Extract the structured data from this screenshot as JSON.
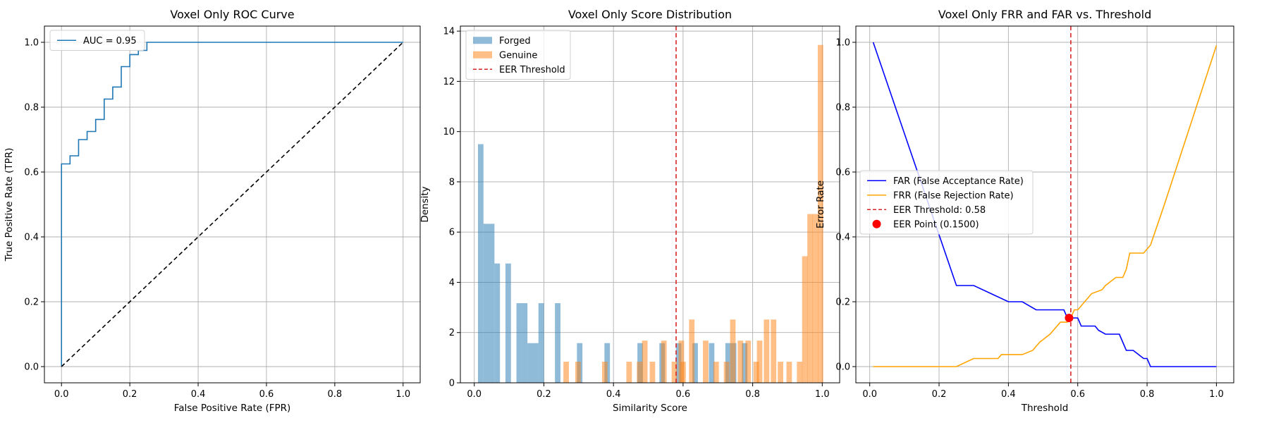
{
  "chart_data": [
    {
      "type": "line",
      "title": "Voxel Only ROC Curve",
      "xlabel": "False Positive Rate (FPR)",
      "ylabel": "True Positive Rate (TPR)",
      "xlim": [
        -0.05,
        1.05
      ],
      "ylim": [
        -0.05,
        1.05
      ],
      "xticks": [
        "0.0",
        "0.2",
        "0.4",
        "0.6",
        "0.8",
        "1.0"
      ],
      "yticks": [
        "0.0",
        "0.2",
        "0.4",
        "0.6",
        "0.8",
        "1.0"
      ],
      "grid": true,
      "legend": "top-left",
      "series": [
        {
          "name": "AUC = 0.95",
          "color": "#1f77b4",
          "style": "step",
          "x": [
            0,
            0,
            0.025,
            0.025,
            0.05,
            0.05,
            0.075,
            0.075,
            0.1,
            0.1,
            0.125,
            0.125,
            0.15,
            0.15,
            0.175,
            0.175,
            0.2,
            0.2,
            0.225,
            0.225,
            0.25,
            0.25,
            1.0
          ],
          "y": [
            0,
            0.625,
            0.625,
            0.65,
            0.65,
            0.7,
            0.7,
            0.725,
            0.725,
            0.762,
            0.762,
            0.825,
            0.825,
            0.862,
            0.862,
            0.925,
            0.925,
            0.962,
            0.962,
            0.975,
            0.975,
            1.0,
            1.0
          ]
        },
        {
          "name": "",
          "color": "#000000",
          "style": "dashed",
          "x": [
            0,
            1
          ],
          "y": [
            0,
            1
          ]
        }
      ]
    },
    {
      "type": "bar",
      "title": "Voxel Only Score Distribution",
      "xlabel": "Similarity Score",
      "ylabel": "Density",
      "xlim": [
        -0.04,
        1.05
      ],
      "ylim": [
        0,
        14.2
      ],
      "xticks": [
        "0.0",
        "0.2",
        "0.4",
        "0.6",
        "0.8",
        "1.0"
      ],
      "yticks": [
        "0",
        "2",
        "4",
        "6",
        "8",
        "10",
        "12",
        "14"
      ],
      "grid": true,
      "legend": "top-left",
      "threshold": {
        "name": "EER Threshold",
        "x": 0.58,
        "color": "#d62728"
      },
      "series": [
        {
          "name": "Forged",
          "color": "#1f77b4",
          "opacity": 0.5,
          "bin_width": 0.0158,
          "bins": [
            [
              0.0185,
              9.5
            ],
            [
              0.0343,
              6.33
            ],
            [
              0.0501,
              6.33
            ],
            [
              0.0659,
              4.75
            ],
            [
              0.0975,
              4.75
            ],
            [
              0.1291,
              3.17
            ],
            [
              0.1449,
              3.17
            ],
            [
              0.1607,
              1.58
            ],
            [
              0.1765,
              1.58
            ],
            [
              0.1923,
              3.17
            ],
            [
              0.2397,
              3.17
            ],
            [
              0.3029,
              1.58
            ],
            [
              0.3819,
              1.58
            ],
            [
              0.4767,
              1.58
            ],
            [
              0.5399,
              1.58
            ],
            [
              0.5873,
              1.58
            ],
            [
              0.6347,
              1.58
            ],
            [
              0.6821,
              1.58
            ],
            [
              0.7295,
              1.58
            ],
            [
              0.7453,
              1.58
            ],
            [
              0.7769,
              1.58
            ]
          ]
        },
        {
          "name": "Genuine",
          "color": "#ff7f0e",
          "opacity": 0.5,
          "bin_width": 0.0158,
          "bins": [
            [
              0.264,
              0.84
            ],
            [
              0.298,
              0.84
            ],
            [
              0.375,
              0.84
            ],
            [
              0.445,
              0.84
            ],
            [
              0.475,
              0.84
            ],
            [
              0.49,
              1.68
            ],
            [
              0.512,
              0.84
            ],
            [
              0.545,
              1.68
            ],
            [
              0.575,
              0.84
            ],
            [
              0.595,
              1.68
            ],
            [
              0.6,
              0.84
            ],
            [
              0.625,
              2.52
            ],
            [
              0.665,
              1.68
            ],
            [
              0.695,
              0.84
            ],
            [
              0.725,
              0.84
            ],
            [
              0.743,
              2.52
            ],
            [
              0.765,
              1.68
            ],
            [
              0.787,
              1.68
            ],
            [
              0.81,
              0.84
            ],
            [
              0.82,
              1.68
            ],
            [
              0.84,
              2.52
            ],
            [
              0.86,
              2.52
            ],
            [
              0.88,
              0.84
            ],
            [
              0.905,
              0.84
            ],
            [
              0.935,
              0.84
            ],
            [
              0.95,
              5.04
            ],
            [
              0.965,
              6.72
            ],
            [
              0.98,
              6.72
            ],
            [
              0.995,
              13.45
            ]
          ]
        }
      ]
    },
    {
      "type": "line",
      "title": "Voxel Only FRR and FAR vs. Threshold",
      "xlabel": "Threshold",
      "ylabel": "Error Rate",
      "xlim": [
        -0.04,
        1.05
      ],
      "ylim": [
        -0.05,
        1.05
      ],
      "xticks": [
        "0.0",
        "0.2",
        "0.4",
        "0.6",
        "0.8",
        "1.0"
      ],
      "yticks": [
        "0.0",
        "0.2",
        "0.4",
        "0.6",
        "0.8",
        "1.0"
      ],
      "grid": true,
      "legend": "center-left",
      "threshold": {
        "name": "EER Threshold: 0.58",
        "x": 0.58,
        "color": "#d62728"
      },
      "eer_point": {
        "name": "EER Point (0.1500)",
        "x": 0.575,
        "y": 0.15,
        "color": "#ff0000"
      },
      "series": [
        {
          "name": "FAR (False Acceptance Rate)",
          "color": "#0000ff",
          "x": [
            0.01,
            0.25,
            0.3,
            0.35,
            0.4,
            0.44,
            0.48,
            0.49,
            0.52,
            0.56,
            0.57,
            0.6,
            0.61,
            0.65,
            0.66,
            0.68,
            0.69,
            0.72,
            0.73,
            0.74,
            0.76,
            0.79,
            0.8,
            0.81,
            1.0
          ],
          "y": [
            1.0,
            0.25,
            0.25,
            0.225,
            0.2,
            0.2,
            0.175,
            0.175,
            0.175,
            0.175,
            0.15,
            0.15,
            0.125,
            0.125,
            0.112,
            0.1,
            0.1,
            0.1,
            0.075,
            0.05,
            0.05,
            0.025,
            0.025,
            0.0,
            0.0
          ]
        },
        {
          "name": "FRR (False Rejection Rate)",
          "color": "#ffa500",
          "x": [
            0.01,
            0.25,
            0.3,
            0.37,
            0.38,
            0.44,
            0.47,
            0.49,
            0.52,
            0.55,
            0.57,
            0.58,
            0.59,
            0.6,
            0.64,
            0.67,
            0.68,
            0.71,
            0.73,
            0.74,
            0.75,
            0.77,
            0.78,
            0.79,
            0.81,
            0.85,
            1.0
          ],
          "y": [
            0.0,
            0.0,
            0.025,
            0.025,
            0.037,
            0.037,
            0.05,
            0.075,
            0.1,
            0.137,
            0.137,
            0.15,
            0.175,
            0.175,
            0.225,
            0.237,
            0.25,
            0.275,
            0.275,
            0.3,
            0.35,
            0.35,
            0.35,
            0.35,
            0.375,
            0.5,
            0.99
          ]
        }
      ]
    }
  ]
}
